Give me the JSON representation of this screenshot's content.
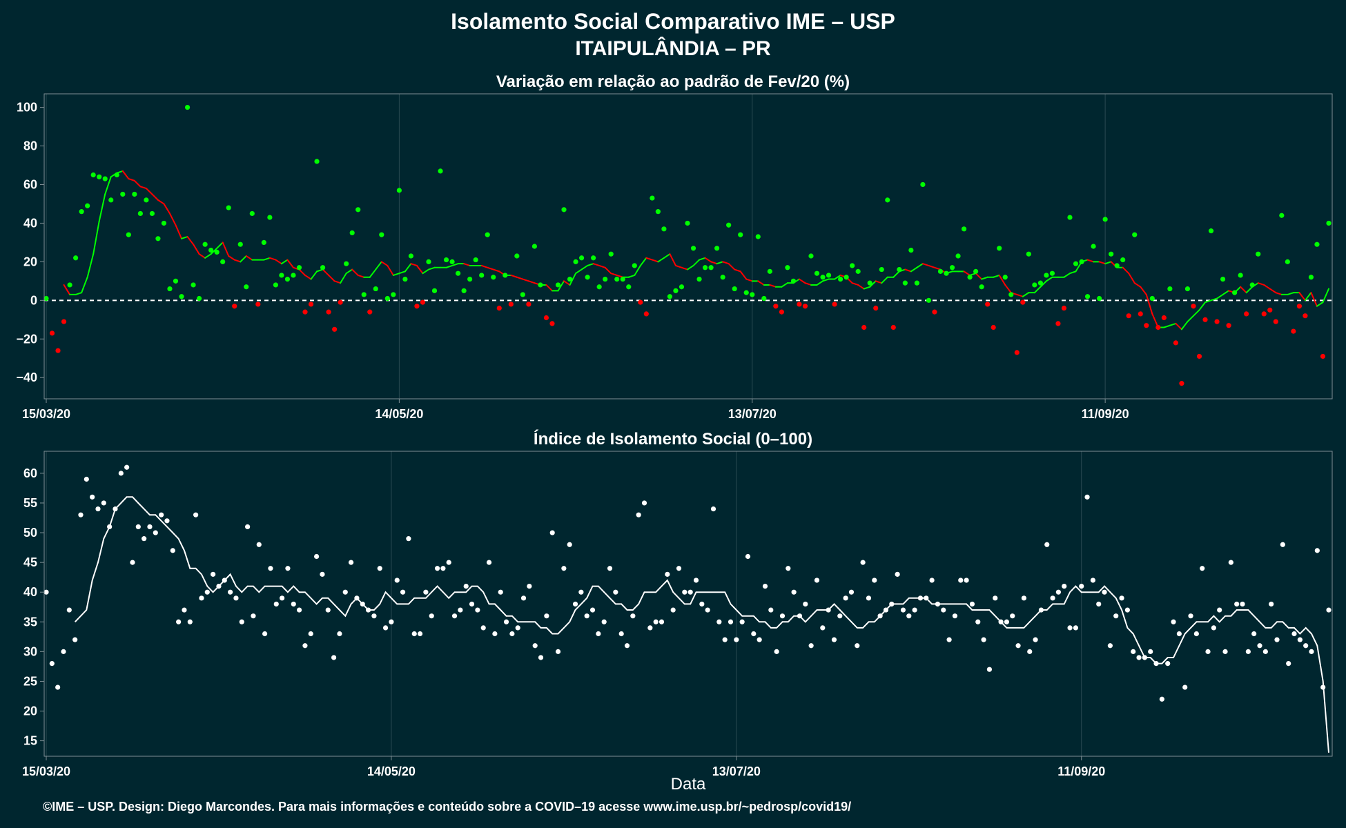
{
  "title": "Isolamento Social Comparativo IME – USP",
  "subtitle": "ITAIPULÂNDIA – PR",
  "xlabel": "Data",
  "footer": "©IME – USP. Design: Diego Marcondes. Para mais informações e conteúdo sobre a COVID–19 acesse www.ime.usp.br/~pedrosp/covid19/",
  "colors": {
    "background": "#00262f",
    "positive": "#00ff00",
    "negative": "#ff0000",
    "index": "#ffffff",
    "grid": "#2a4a52"
  },
  "chart_data": [
    {
      "type": "scatter",
      "title": "Variação em relação ao padrão de Fev/20 (%)",
      "x_start": "15/03/20",
      "x_end": "21/10/20",
      "x_ticks": [
        "15/03/20",
        "14/05/20",
        "13/07/20",
        "11/09/20"
      ],
      "x_tick_days": [
        0,
        60,
        120,
        180
      ],
      "y_ticks": [
        -40,
        -20,
        0,
        20,
        40,
        60,
        80,
        100
      ],
      "ylim": [
        -51,
        107
      ],
      "reference_line": 0,
      "grid": true,
      "series": [
        {
          "values": [
            1,
            -17,
            -26,
            -11,
            8,
            22,
            46,
            49,
            65,
            64,
            63,
            52,
            65,
            55,
            34,
            55,
            45,
            52,
            45,
            32,
            40,
            6,
            10,
            2,
            100,
            8,
            1,
            29,
            26,
            25,
            20,
            48,
            -3,
            29,
            7,
            45,
            -2,
            30,
            43,
            8,
            13,
            11,
            13,
            17,
            -6,
            -2,
            72,
            17,
            -6,
            -15,
            -1,
            19,
            35,
            47,
            3,
            -6,
            6,
            34,
            1,
            3,
            57,
            11,
            23,
            -3,
            -1,
            20,
            5,
            67,
            21,
            20,
            14,
            5,
            11,
            21,
            13,
            34,
            12,
            -4,
            13,
            -2,
            23,
            3,
            -2,
            28,
            8,
            -9,
            -12,
            8,
            47,
            11,
            20,
            22,
            12,
            22,
            7,
            11,
            24,
            11,
            11,
            7,
            18,
            -1,
            -7,
            53,
            46,
            37,
            2,
            5,
            7,
            40,
            27,
            11,
            17,
            17,
            27,
            12,
            39,
            6,
            34,
            4,
            3,
            33,
            1,
            15,
            -3,
            -6,
            17,
            10,
            -2,
            -3,
            23,
            14,
            12,
            13,
            -2,
            11,
            12,
            18,
            15,
            -14,
            9,
            -4,
            16,
            52,
            -14,
            16,
            9,
            26,
            9,
            60,
            0,
            -6,
            15,
            14,
            17,
            23,
            37,
            12,
            15,
            7,
            -2,
            -14,
            27,
            12,
            3,
            -27,
            -1,
            24,
            8,
            9,
            13,
            14,
            -12,
            -4,
            43,
            19,
            20,
            2,
            28,
            1,
            42,
            24,
            18,
            21,
            -8,
            34,
            -7,
            -13,
            1,
            -14,
            -9,
            6,
            -22,
            -43,
            6,
            -3,
            -29,
            -10,
            36,
            -11,
            11,
            -13,
            4,
            13,
            -7,
            8,
            24,
            -7,
            -5,
            -11,
            44,
            20,
            -16,
            -3,
            -8,
            12,
            29,
            -29,
            40
          ],
          "trend": [
            8,
            3,
            3,
            4,
            12,
            24,
            41,
            55,
            64,
            66,
            67,
            63,
            62,
            59,
            58,
            55,
            52,
            50,
            45,
            39,
            32,
            33,
            29,
            24,
            22,
            24,
            27,
            30,
            23,
            21,
            20,
            23,
            21,
            21,
            21,
            22,
            21,
            19,
            21,
            17,
            16,
            13,
            11,
            15,
            16,
            13,
            10,
            9,
            14,
            16,
            13,
            12,
            12,
            16,
            20,
            18,
            13,
            14,
            15,
            19,
            18,
            14,
            16,
            17,
            17,
            17,
            18,
            19,
            19,
            18,
            18,
            18,
            17,
            16,
            15,
            13,
            13,
            12,
            11,
            10,
            9,
            8,
            8,
            5,
            5,
            10,
            8,
            14,
            16,
            18,
            19,
            18,
            17,
            14,
            13,
            12,
            12,
            13,
            18,
            22,
            21,
            20,
            22,
            24,
            18,
            17,
            16,
            18,
            21,
            22,
            20,
            19,
            20,
            19,
            16,
            15,
            11,
            10,
            10,
            8,
            8,
            7,
            7,
            9,
            9,
            11,
            9,
            8,
            8,
            10,
            11,
            11,
            13,
            12,
            9,
            8,
            6,
            7,
            10,
            9,
            12,
            12,
            15,
            16,
            15,
            17,
            19,
            18,
            17,
            16,
            14,
            15,
            15,
            15,
            13,
            14,
            11,
            12,
            12,
            13,
            8,
            4,
            3,
            2,
            4,
            4,
            7,
            10,
            12,
            12,
            12,
            14,
            15,
            20,
            21,
            20,
            20,
            19,
            20,
            17,
            17,
            14,
            9,
            7,
            3,
            -7,
            -14,
            -14,
            -13,
            -12,
            -15,
            -11,
            -8,
            -5,
            -1,
            0,
            1,
            3,
            5,
            4,
            7,
            4,
            7,
            9,
            8,
            6,
            4,
            3,
            3,
            4,
            4,
            0,
            4,
            -3,
            -1,
            6
          ]
        }
      ]
    },
    {
      "type": "scatter",
      "title": "Índice de Isolamento Social (0–100)",
      "x_start": "15/03/20",
      "x_end": "21/10/20",
      "x_ticks": [
        "15/03/20",
        "14/05/20",
        "13/07/20",
        "11/09/20"
      ],
      "x_tick_days": [
        0,
        60,
        120,
        180
      ],
      "xlabel": "Data",
      "y_ticks": [
        15,
        20,
        25,
        30,
        35,
        40,
        45,
        50,
        55,
        60
      ],
      "ylim": [
        12.4,
        63.7
      ],
      "grid": true,
      "series": [
        {
          "values": [
            40,
            28,
            24,
            30,
            37,
            32,
            53,
            59,
            56,
            54,
            55,
            51,
            54,
            60,
            61,
            45,
            51,
            49,
            51,
            50,
            53,
            52,
            47,
            35,
            37,
            35,
            53,
            39,
            40,
            43,
            41,
            42,
            40,
            39,
            35,
            51,
            36,
            48,
            33,
            44,
            38,
            39,
            44,
            38,
            37,
            31,
            33,
            46,
            43,
            37,
            29,
            33,
            40,
            45,
            39,
            38,
            37,
            36,
            44,
            34,
            35,
            42,
            40,
            49,
            33,
            33,
            40,
            36,
            44,
            44,
            45,
            36,
            37,
            41,
            38,
            37,
            34,
            45,
            33,
            40,
            35,
            33,
            34,
            39,
            41,
            31,
            29,
            36,
            50,
            30,
            44,
            48,
            38,
            40,
            36,
            37,
            33,
            35,
            44,
            40,
            33,
            31,
            36,
            53,
            55,
            34,
            35,
            35,
            43,
            37,
            44,
            40,
            40,
            42,
            38,
            37,
            54,
            35,
            32,
            35,
            32,
            35,
            46,
            33,
            32,
            41,
            37,
            30,
            36,
            44,
            40,
            36,
            38,
            31,
            42,
            34,
            37,
            32,
            36,
            39,
            40,
            31,
            45,
            39,
            42,
            36,
            37,
            38,
            43,
            37,
            36,
            37,
            39,
            39,
            42,
            38,
            37,
            32,
            36,
            42,
            42,
            38,
            35,
            32,
            27,
            39,
            35,
            35,
            36,
            31,
            39,
            30,
            32,
            37,
            48,
            39,
            40,
            41,
            34,
            34,
            41,
            56,
            42,
            38,
            40,
            31,
            36,
            39,
            37,
            30,
            29,
            29,
            30,
            28,
            22,
            28,
            35,
            33,
            24,
            36,
            33,
            44,
            30,
            34,
            37,
            30,
            45,
            38,
            38,
            30,
            33,
            31,
            30,
            38,
            32,
            48,
            28,
            33,
            32,
            31,
            30,
            47,
            24,
            37
          ],
          "trend": [
            35,
            36,
            37,
            42,
            45,
            49,
            51,
            54,
            55,
            56,
            56,
            55,
            54,
            53,
            53,
            52,
            51,
            50,
            49,
            47,
            44,
            44,
            43,
            41,
            40,
            41,
            42,
            43,
            41,
            40,
            41,
            41,
            40,
            41,
            41,
            41,
            41,
            40,
            41,
            40,
            40,
            39,
            38,
            39,
            39,
            38,
            37,
            36,
            38,
            39,
            38,
            37,
            37,
            38,
            40,
            39,
            38,
            38,
            38,
            39,
            39,
            39,
            40,
            41,
            40,
            39,
            40,
            40,
            40,
            41,
            41,
            40,
            38,
            38,
            37,
            36,
            36,
            35,
            35,
            35,
            35,
            34,
            34,
            33,
            33,
            34,
            35,
            37,
            38,
            39,
            41,
            41,
            40,
            39,
            38,
            38,
            37,
            37,
            38,
            40,
            40,
            40,
            41,
            42,
            40,
            39,
            38,
            38,
            40,
            40,
            40,
            40,
            40,
            40,
            38,
            37,
            36,
            36,
            36,
            35,
            35,
            34,
            34,
            35,
            35,
            36,
            36,
            35,
            36,
            37,
            37,
            37,
            38,
            37,
            36,
            35,
            34,
            34,
            35,
            35,
            36,
            37,
            38,
            38,
            38,
            39,
            39,
            39,
            39,
            38,
            38,
            38,
            38,
            38,
            38,
            38,
            37,
            37,
            37,
            37,
            36,
            35,
            34,
            34,
            34,
            34,
            35,
            36,
            37,
            37,
            38,
            38,
            38,
            40,
            41,
            40,
            40,
            40,
            40,
            41,
            40,
            39,
            37,
            34,
            33,
            31,
            29,
            29,
            28,
            28,
            29,
            29,
            31,
            33,
            34,
            35,
            35,
            35,
            36,
            35,
            36,
            36,
            37,
            37,
            37,
            36,
            35,
            34,
            34,
            35,
            35,
            34,
            34,
            33,
            34,
            33,
            31,
            25,
            13
          ]
        }
      ]
    }
  ]
}
